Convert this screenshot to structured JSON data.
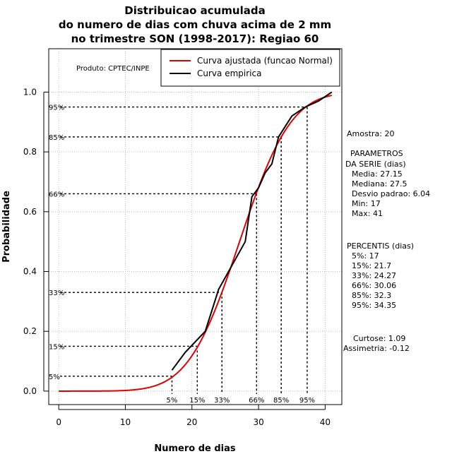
{
  "chart_data": {
    "type": "line",
    "title_lines": [
      "Distribuicao acumulada",
      "do numero de dias com chuva acima de 2 mm",
      "no trimestre SON (1998-2017): Regiao 60"
    ],
    "xlabel": "Numero de dias",
    "ylabel": "Probabilidade",
    "xlim": [
      -1.5,
      42.5
    ],
    "ylim": [
      -0.045,
      1.145
    ],
    "xticks": [
      0,
      10,
      20,
      30,
      40
    ],
    "yticks": [
      0.0,
      0.2,
      0.4,
      0.6,
      0.8,
      1.0
    ],
    "ytick_labels": [
      "0.0",
      "0.2",
      "0.4",
      "0.6",
      "0.8",
      "1.0"
    ],
    "grid": true,
    "credit": "Produto: CPTEC/INPE",
    "legend": {
      "position": "top-right",
      "entries": [
        {
          "label": "Curva ajustada (funcao Normal)",
          "color": "#e00000"
        },
        {
          "label": "Curva empirica",
          "color": "#000000"
        }
      ]
    },
    "normal_fit": {
      "mean": 27.15,
      "sd": 6.04,
      "x_from": 0,
      "x_to": 41,
      "color": "#e00000"
    },
    "series": [
      {
        "name": "Curva empirica",
        "color": "#000000",
        "points": [
          [
            17,
            0.07
          ],
          [
            19,
            0.13
          ],
          [
            22,
            0.2
          ],
          [
            24,
            0.34
          ],
          [
            26,
            0.42
          ],
          [
            28,
            0.5
          ],
          [
            29,
            0.65
          ],
          [
            30,
            0.68
          ],
          [
            31,
            0.73
          ],
          [
            32,
            0.76
          ],
          [
            33,
            0.85
          ],
          [
            35,
            0.92
          ],
          [
            37,
            0.95
          ],
          [
            39,
            0.97
          ],
          [
            41,
            1.0
          ]
        ]
      }
    ],
    "percentile_lines": [
      {
        "label": "5%",
        "x": 17,
        "p": 0.05
      },
      {
        "label": "15%",
        "x": 20.8,
        "p": 0.15
      },
      {
        "label": "33%",
        "x": 24.5,
        "p": 0.33
      },
      {
        "label": "66%",
        "x": 29.7,
        "p": 0.66
      },
      {
        "label": "85%",
        "x": 33.4,
        "p": 0.85
      },
      {
        "label": "95%",
        "x": 37.3,
        "p": 0.95
      }
    ],
    "stats_panel": {
      "sample": "Amostra: 20",
      "params_header": [
        "PARAMETROS",
        "DA SERIE (dias)"
      ],
      "params": [
        "Media: 27.15",
        "Mediana: 27.5",
        "Desvio padrao: 6.04",
        "Min: 17",
        "Max: 41"
      ],
      "percentiles_header": "PERCENTIS (dias)",
      "percentiles": [
        "5%: 17",
        "15%: 21.7",
        "33%: 24.27",
        "66%: 30.06",
        "85%: 32.3",
        "95%: 34.35"
      ],
      "shape": [
        "Curtose: 1.09",
        "Assimetria: -0.12"
      ]
    }
  }
}
